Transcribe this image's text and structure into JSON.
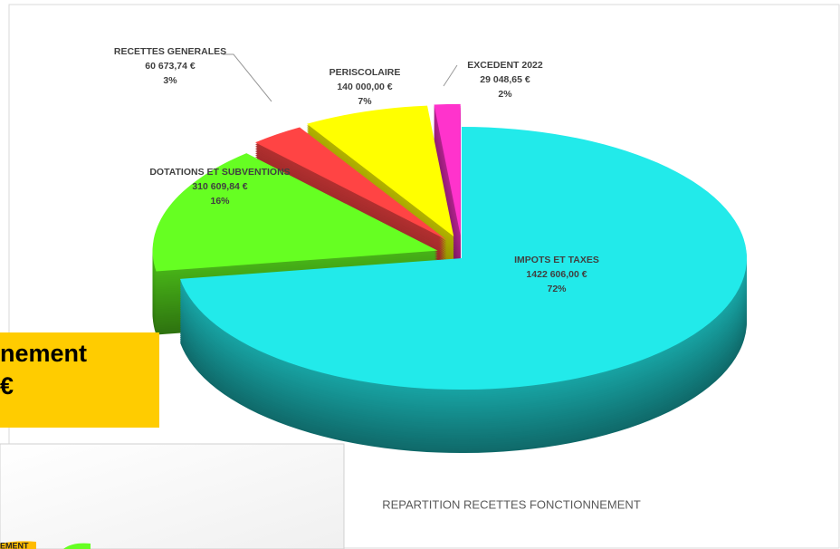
{
  "chart_data": {
    "type": "pie",
    "title": "REPARTITION RECETTES FONCTIONNEMENT",
    "categories": [
      "IMPOTS ET TAXES",
      "DOTATIONS ET SUBVENTIONS",
      "RECETTES GENERALES",
      "PERISCOLAIRE",
      "EXCEDENT 2022"
    ],
    "values": [
      1422606.0,
      310609.84,
      60673.74,
      140000.0,
      29048.65
    ],
    "value_labels": [
      "1422 606,00 €",
      "310 609,84 €",
      "60 673,74 €",
      "140 000,00 €",
      "29 048,65 €"
    ],
    "percent_labels": [
      "72%",
      "16%",
      "3%",
      "7%",
      "2%"
    ],
    "colors": [
      "#22eaea",
      "#66ff22",
      "#ff4444",
      "#ffff00",
      "#ff33cc"
    ]
  },
  "background_texts": {
    "box_line_1": "nement",
    "box_line_2": "€",
    "panel_label": "EMENT"
  }
}
